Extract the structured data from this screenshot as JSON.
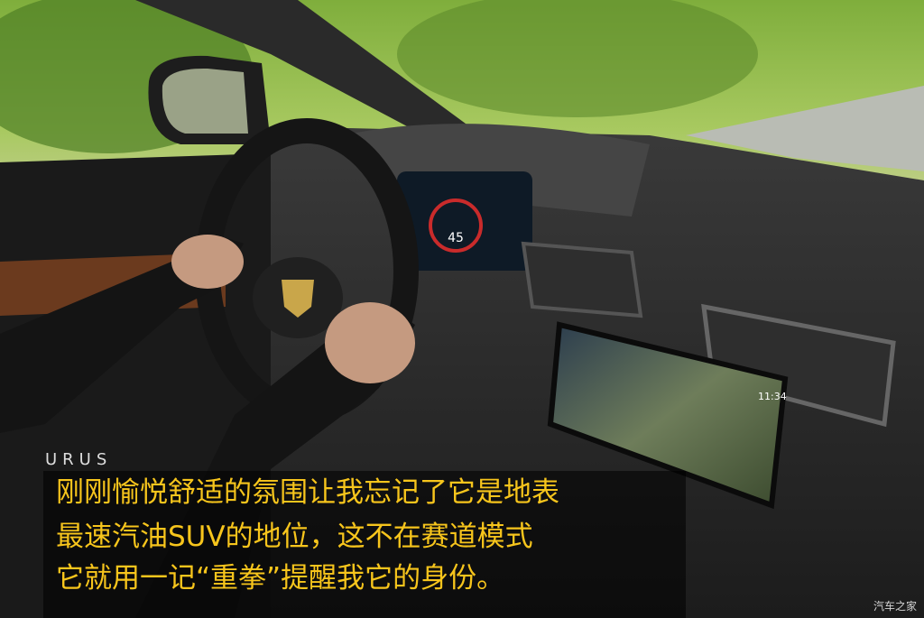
{
  "logo": "URUS",
  "caption": {
    "lines": [
      "刚刚愉悦舒适的氛围让我忘记了它是地表",
      "最速汽油SUV的地位，这不在赛道模式",
      "它就用一记“重拳”提醒我它的身份。"
    ]
  },
  "screen": {
    "clock": "11:34",
    "speed": "45"
  },
  "watermark": "汽车之家"
}
